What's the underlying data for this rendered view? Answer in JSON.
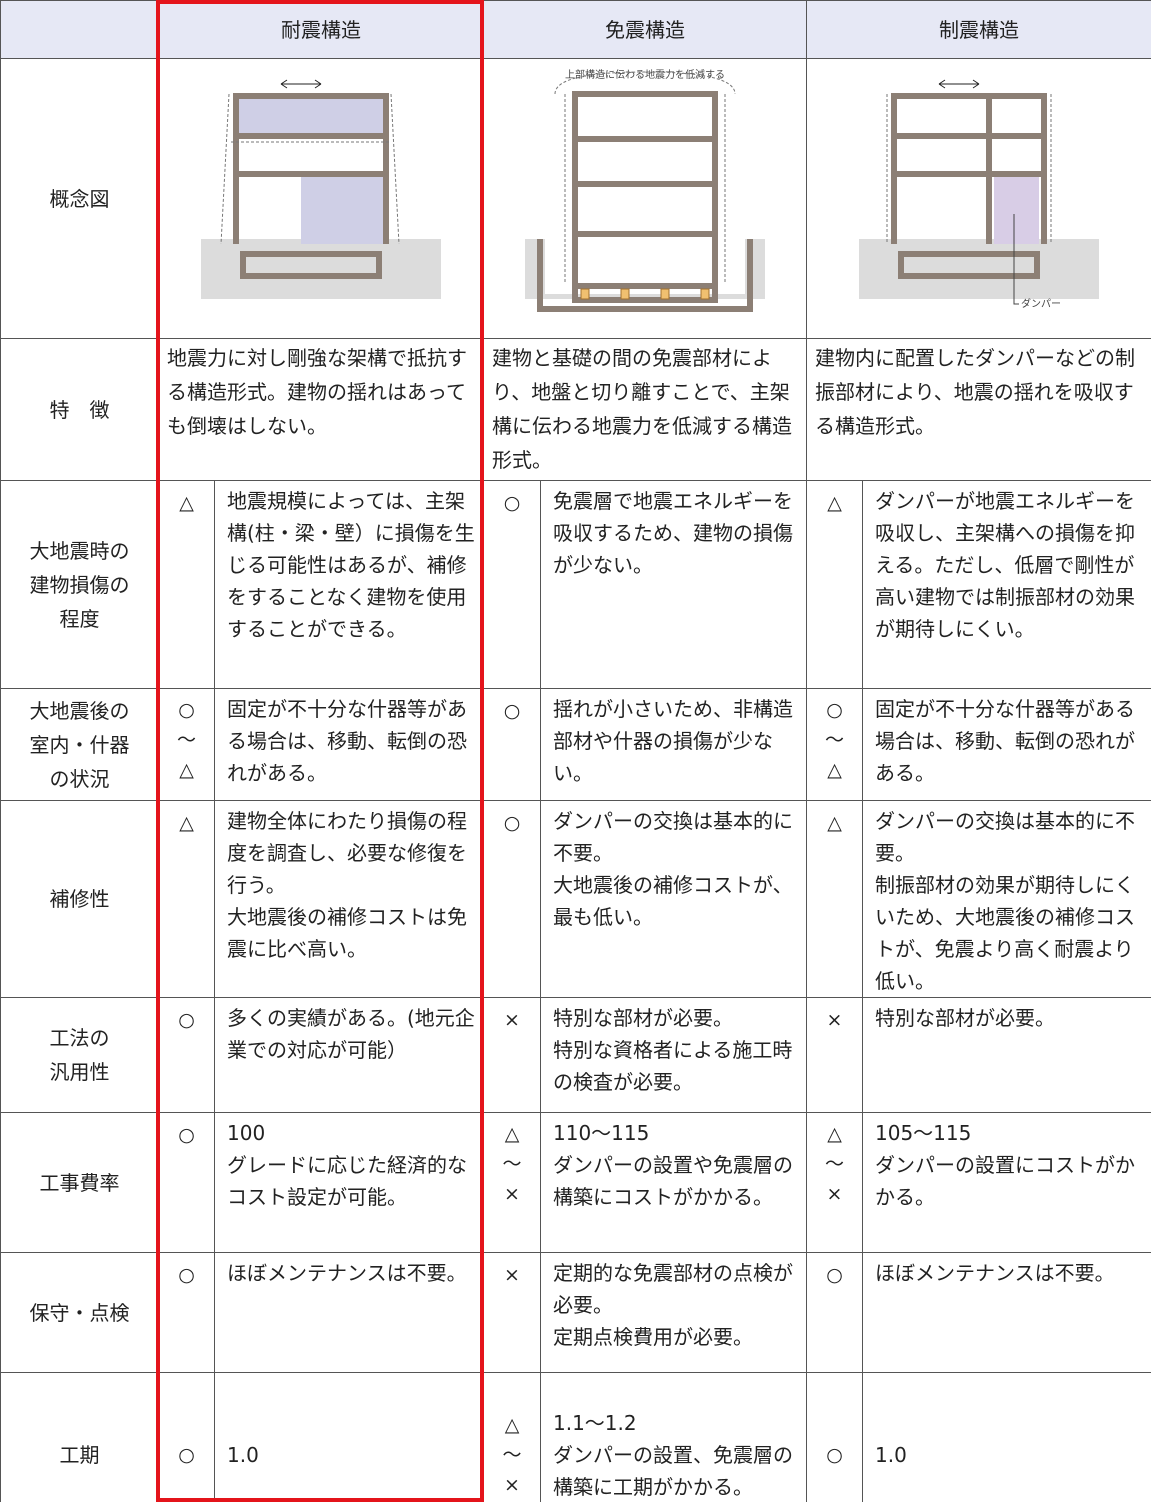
{
  "table": {
    "columns": [
      "耐震構造",
      "免震構造",
      "制震構造"
    ],
    "concept": {
      "label": "概念図",
      "annotations": {
        "isolation": "上部構造に伝わる地震力を低減する",
        "damper": "ダンパー"
      }
    },
    "features": {
      "label": "特　徴",
      "cells": [
        "地震力に対し剛強な架構で抵抗する構造形式。建物の揺れはあっても倒壊はしない。",
        "建物と基礎の間の免震部材により、地盤と切り離すことで、主架構に伝わる地震力を低減する構造形式。",
        "建物内に配置したダンパーなどの制振部材により、地震の揺れを吸収する構造形式。"
      ]
    },
    "rows": [
      {
        "label": [
          "大地震時の",
          "建物損傷の",
          "程度"
        ],
        "cells": [
          {
            "rating": "△",
            "text": [
              "地震規模によっては、主架構(柱・梁・壁）に損傷を生じる可能性はあるが、補修をすることなく建物を使用することができる。"
            ]
          },
          {
            "rating": "○",
            "text": [
              "免震層で地震エネルギーを吸収するため、建物の損傷が少ない。"
            ]
          },
          {
            "rating": "△",
            "text": [
              "ダンパーが地震エネルギーを吸収し、主架構への損傷を抑える。ただし、低層で剛性が高い建物では制振部材の効果が期待しにくい。"
            ]
          }
        ]
      },
      {
        "label": [
          "大地震後の",
          "室内・什器",
          "の状況"
        ],
        "cells": [
          {
            "rating": "○～△",
            "text": [
              "固定が不十分な什器等がある場合は、移動、転倒の恐れがある。"
            ]
          },
          {
            "rating": "○",
            "text": [
              "揺れが小さいため、非構造部材や什器の損傷が少ない。"
            ]
          },
          {
            "rating": "○～△",
            "text": [
              "固定が不十分な什器等がある場合は、移動、転倒の恐れがある。"
            ]
          }
        ]
      },
      {
        "label": [
          "補修性"
        ],
        "cells": [
          {
            "rating": "△",
            "text": [
              "建物全体にわたり損傷の程度を調査し、必要な修復を行う。",
              "大地震後の補修コストは免震に比べ高い。"
            ]
          },
          {
            "rating": "○",
            "text": [
              "ダンパーの交換は基本的に不要。",
              "大地震後の補修コストが、最も低い。"
            ]
          },
          {
            "rating": "△",
            "text": [
              "ダンパーの交換は基本的に不要。",
              "制振部材の効果が期待しにくいため、大地震後の補修コストが、免震より高く耐震より低い。"
            ]
          }
        ]
      },
      {
        "label": [
          "工法の",
          "汎用性"
        ],
        "cells": [
          {
            "rating": "○",
            "text": [
              "多くの実績がある。(地元企業での対応が可能）"
            ]
          },
          {
            "rating": "×",
            "text": [
              "特別な部材が必要。",
              "特別な資格者による施工時の検査が必要。"
            ]
          },
          {
            "rating": "×",
            "text": [
              "特別な部材が必要。"
            ]
          }
        ]
      },
      {
        "label": [
          "工事費率"
        ],
        "cells": [
          {
            "rating": "○",
            "text": [
              "100",
              "グレードに応じた経済的なコスト設定が可能。"
            ]
          },
          {
            "rating": "△～×",
            "text": [
              "110～115",
              "ダンパーの設置や免震層の構築にコストがかかる。"
            ]
          },
          {
            "rating": "△～×",
            "text": [
              "105～115",
              "ダンパーの設置にコストがかかる。"
            ]
          }
        ]
      },
      {
        "label": [
          "保守・点検"
        ],
        "cells": [
          {
            "rating": "○",
            "text": [
              "ほぼメンテナンスは不要。"
            ]
          },
          {
            "rating": "×",
            "text": [
              "定期的な免震部材の点検が必要。",
              "定期点検費用が必要。"
            ]
          },
          {
            "rating": "○",
            "text": [
              "ほぼメンテナンスは不要。"
            ]
          }
        ]
      },
      {
        "label": [
          "工期"
        ],
        "cells": [
          {
            "rating": "○",
            "text": [
              "1.0"
            ]
          },
          {
            "rating": "△～×",
            "text": [
              "1.1～1.2",
              "ダンパーの設置、免震層の構築に工期がかかる。"
            ]
          },
          {
            "rating": "○",
            "text": [
              "1.0"
            ]
          }
        ]
      }
    ]
  }
}
